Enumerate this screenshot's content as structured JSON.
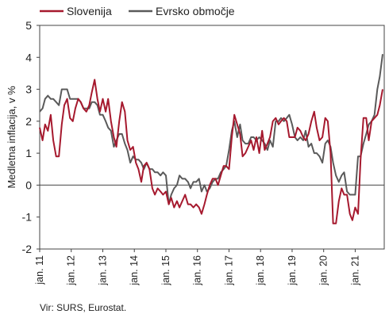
{
  "chart_data": {
    "type": "line",
    "ylabel": "Medletna inflacija, v %",
    "ylim": [
      -2,
      5
    ],
    "yticks": [
      -2,
      -1,
      0,
      1,
      2,
      3,
      4,
      5
    ],
    "xlim": [
      2011.0,
      2021.92
    ],
    "xticks": [
      {
        "x": 2011,
        "label": "jan. 11"
      },
      {
        "x": 2012,
        "label": "jan. 12"
      },
      {
        "x": 2013,
        "label": "jan. 13"
      },
      {
        "x": 2014,
        "label": "jan. 14"
      },
      {
        "x": 2015,
        "label": "jan. 15"
      },
      {
        "x": 2016,
        "label": "jan. 16"
      },
      {
        "x": 2017,
        "label": "jan. 17"
      },
      {
        "x": 2018,
        "label": "jan. 18"
      },
      {
        "x": 2019,
        "label": "jan. 19"
      },
      {
        "x": 2020,
        "label": "jan. 20"
      },
      {
        "x": 2021,
        "label": "jan. 21"
      }
    ],
    "grid": false,
    "legend_position": "top-left",
    "source": "Vir: SURS, Eurostat.",
    "series": [
      {
        "name": "Slovenija",
        "color": "#a6192e",
        "points": [
          [
            2011.0,
            1.8
          ],
          [
            2011.09,
            1.4
          ],
          [
            2011.17,
            1.9
          ],
          [
            2011.26,
            1.7
          ],
          [
            2011.35,
            2.2
          ],
          [
            2011.43,
            1.4
          ],
          [
            2011.52,
            0.9
          ],
          [
            2011.61,
            0.9
          ],
          [
            2011.7,
            1.9
          ],
          [
            2011.78,
            2.5
          ],
          [
            2011.87,
            2.7
          ],
          [
            2011.96,
            2.1
          ],
          [
            2012.05,
            2.0
          ],
          [
            2012.13,
            2.4
          ],
          [
            2012.22,
            2.7
          ],
          [
            2012.3,
            2.6
          ],
          [
            2012.39,
            2.4
          ],
          [
            2012.48,
            2.3
          ],
          [
            2012.57,
            2.5
          ],
          [
            2012.65,
            2.9
          ],
          [
            2012.74,
            3.3
          ],
          [
            2012.83,
            2.7
          ],
          [
            2012.91,
            2.3
          ],
          [
            2013.0,
            2.7
          ],
          [
            2013.09,
            2.3
          ],
          [
            2013.17,
            2.7
          ],
          [
            2013.26,
            2.0
          ],
          [
            2013.35,
            1.5
          ],
          [
            2013.43,
            1.2
          ],
          [
            2013.52,
            2.0
          ],
          [
            2013.61,
            2.6
          ],
          [
            2013.7,
            2.3
          ],
          [
            2013.78,
            1.4
          ],
          [
            2013.87,
            1.1
          ],
          [
            2013.96,
            1.2
          ],
          [
            2014.05,
            0.7
          ],
          [
            2014.13,
            0.5
          ],
          [
            2014.22,
            0.1
          ],
          [
            2014.3,
            0.6
          ],
          [
            2014.39,
            0.7
          ],
          [
            2014.48,
            0.5
          ],
          [
            2014.57,
            -0.1
          ],
          [
            2014.65,
            -0.3
          ],
          [
            2014.74,
            -0.1
          ],
          [
            2014.83,
            -0.2
          ],
          [
            2014.91,
            -0.3
          ],
          [
            2015.0,
            -0.2
          ],
          [
            2015.09,
            -0.6
          ],
          [
            2015.17,
            -0.4
          ],
          [
            2015.26,
            -0.7
          ],
          [
            2015.35,
            -0.5
          ],
          [
            2015.43,
            -0.7
          ],
          [
            2015.52,
            -0.5
          ],
          [
            2015.61,
            -0.3
          ],
          [
            2015.7,
            -0.6
          ],
          [
            2015.78,
            -0.6
          ],
          [
            2015.87,
            -0.7
          ],
          [
            2015.96,
            -0.6
          ],
          [
            2016.05,
            -0.7
          ],
          [
            2016.13,
            -0.9
          ],
          [
            2016.22,
            -0.6
          ],
          [
            2016.3,
            -0.3
          ],
          [
            2016.39,
            0.0
          ],
          [
            2016.48,
            0.2
          ],
          [
            2016.57,
            0.2
          ],
          [
            2016.65,
            0.0
          ],
          [
            2016.74,
            0.3
          ],
          [
            2016.83,
            0.6
          ],
          [
            2016.91,
            0.6
          ],
          [
            2017.0,
            0.5
          ],
          [
            2017.09,
            1.5
          ],
          [
            2017.17,
            2.2
          ],
          [
            2017.26,
            1.9
          ],
          [
            2017.35,
            1.6
          ],
          [
            2017.43,
            0.9
          ],
          [
            2017.52,
            1.0
          ],
          [
            2017.61,
            1.2
          ],
          [
            2017.7,
            1.4
          ],
          [
            2017.78,
            1.1
          ],
          [
            2017.87,
            1.5
          ],
          [
            2017.96,
            1.0
          ],
          [
            2018.05,
            1.7
          ],
          [
            2018.13,
            1.1
          ],
          [
            2018.22,
            1.3
          ],
          [
            2018.3,
            1.5
          ],
          [
            2018.39,
            2.0
          ],
          [
            2018.48,
            2.1
          ],
          [
            2018.57,
            1.9
          ],
          [
            2018.65,
            2.0
          ],
          [
            2018.74,
            2.1
          ],
          [
            2018.83,
            2.0
          ],
          [
            2018.91,
            1.5
          ],
          [
            2019.0,
            1.5
          ],
          [
            2019.09,
            1.5
          ],
          [
            2019.17,
            1.8
          ],
          [
            2019.26,
            1.7
          ],
          [
            2019.35,
            1.5
          ],
          [
            2019.43,
            1.4
          ],
          [
            2019.52,
            1.6
          ],
          [
            2019.61,
            2.0
          ],
          [
            2019.7,
            2.3
          ],
          [
            2019.78,
            1.8
          ],
          [
            2019.87,
            1.4
          ],
          [
            2019.96,
            1.5
          ],
          [
            2020.05,
            2.1
          ],
          [
            2020.13,
            2.0
          ],
          [
            2020.22,
            1.0
          ],
          [
            2020.3,
            -1.2
          ],
          [
            2020.39,
            -1.2
          ],
          [
            2020.48,
            -0.5
          ],
          [
            2020.57,
            -0.1
          ],
          [
            2020.65,
            -0.3
          ],
          [
            2020.74,
            -0.3
          ],
          [
            2020.83,
            -0.9
          ],
          [
            2020.91,
            -1.1
          ],
          [
            2021.0,
            -0.7
          ],
          [
            2021.09,
            -0.9
          ],
          [
            2021.17,
            0.8
          ],
          [
            2021.26,
            2.1
          ],
          [
            2021.35,
            2.1
          ],
          [
            2021.43,
            1.4
          ],
          [
            2021.52,
            2.0
          ],
          [
            2021.61,
            2.1
          ],
          [
            2021.7,
            2.2
          ],
          [
            2021.78,
            2.5
          ],
          [
            2021.87,
            3.0
          ]
        ]
      },
      {
        "name": "Evrsko območje",
        "color": "#5a5a5a",
        "points": [
          [
            2011.0,
            2.3
          ],
          [
            2011.09,
            2.4
          ],
          [
            2011.17,
            2.7
          ],
          [
            2011.26,
            2.8
          ],
          [
            2011.35,
            2.7
          ],
          [
            2011.43,
            2.7
          ],
          [
            2011.52,
            2.6
          ],
          [
            2011.61,
            2.5
          ],
          [
            2011.7,
            3.0
          ],
          [
            2011.78,
            3.0
          ],
          [
            2011.87,
            3.0
          ],
          [
            2011.96,
            2.7
          ],
          [
            2012.05,
            2.7
          ],
          [
            2012.13,
            2.7
          ],
          [
            2012.22,
            2.7
          ],
          [
            2012.3,
            2.6
          ],
          [
            2012.39,
            2.4
          ],
          [
            2012.48,
            2.4
          ],
          [
            2012.57,
            2.4
          ],
          [
            2012.65,
            2.6
          ],
          [
            2012.74,
            2.6
          ],
          [
            2012.83,
            2.5
          ],
          [
            2012.91,
            2.2
          ],
          [
            2013.0,
            2.2
          ],
          [
            2013.09,
            2.0
          ],
          [
            2013.17,
            1.8
          ],
          [
            2013.26,
            1.7
          ],
          [
            2013.35,
            1.2
          ],
          [
            2013.43,
            1.4
          ],
          [
            2013.52,
            1.6
          ],
          [
            2013.61,
            1.6
          ],
          [
            2013.7,
            1.3
          ],
          [
            2013.78,
            1.1
          ],
          [
            2013.87,
            0.7
          ],
          [
            2013.96,
            0.9
          ],
          [
            2014.05,
            0.8
          ],
          [
            2014.13,
            0.8
          ],
          [
            2014.22,
            0.7
          ],
          [
            2014.3,
            0.5
          ],
          [
            2014.39,
            0.7
          ],
          [
            2014.48,
            0.5
          ],
          [
            2014.57,
            0.5
          ],
          [
            2014.65,
            0.4
          ],
          [
            2014.74,
            0.4
          ],
          [
            2014.83,
            0.3
          ],
          [
            2014.91,
            0.4
          ],
          [
            2015.0,
            0.3
          ],
          [
            2015.09,
            -0.6
          ],
          [
            2015.17,
            -0.3
          ],
          [
            2015.26,
            -0.1
          ],
          [
            2015.35,
            0.0
          ],
          [
            2015.43,
            0.3
          ],
          [
            2015.52,
            0.2
          ],
          [
            2015.61,
            0.2
          ],
          [
            2015.7,
            0.1
          ],
          [
            2015.78,
            -0.1
          ],
          [
            2015.87,
            0.1
          ],
          [
            2015.96,
            0.1
          ],
          [
            2016.05,
            0.2
          ],
          [
            2016.13,
            -0.2
          ],
          [
            2016.22,
            0.0
          ],
          [
            2016.3,
            -0.2
          ],
          [
            2016.39,
            -0.1
          ],
          [
            2016.48,
            0.1
          ],
          [
            2016.57,
            0.2
          ],
          [
            2016.65,
            0.2
          ],
          [
            2016.74,
            0.4
          ],
          [
            2016.83,
            0.5
          ],
          [
            2016.91,
            0.6
          ],
          [
            2017.0,
            1.1
          ],
          [
            2017.09,
            1.7
          ],
          [
            2017.17,
            2.0
          ],
          [
            2017.26,
            1.5
          ],
          [
            2017.35,
            1.9
          ],
          [
            2017.43,
            1.4
          ],
          [
            2017.52,
            1.3
          ],
          [
            2017.61,
            1.3
          ],
          [
            2017.7,
            1.5
          ],
          [
            2017.78,
            1.5
          ],
          [
            2017.87,
            1.4
          ],
          [
            2017.96,
            1.5
          ],
          [
            2018.05,
            1.4
          ],
          [
            2018.13,
            1.3
          ],
          [
            2018.22,
            1.1
          ],
          [
            2018.3,
            1.4
          ],
          [
            2018.39,
            1.2
          ],
          [
            2018.48,
            2.0
          ],
          [
            2018.57,
            2.0
          ],
          [
            2018.65,
            2.1
          ],
          [
            2018.74,
            2.0
          ],
          [
            2018.83,
            2.1
          ],
          [
            2018.91,
            2.2
          ],
          [
            2019.0,
            1.9
          ],
          [
            2019.09,
            1.5
          ],
          [
            2019.17,
            1.4
          ],
          [
            2019.26,
            1.5
          ],
          [
            2019.35,
            1.4
          ],
          [
            2019.43,
            1.7
          ],
          [
            2019.52,
            1.2
          ],
          [
            2019.61,
            1.3
          ],
          [
            2019.7,
            1.0
          ],
          [
            2019.78,
            1.0
          ],
          [
            2019.87,
            0.9
          ],
          [
            2019.96,
            0.7
          ],
          [
            2020.05,
            1.3
          ],
          [
            2020.13,
            1.4
          ],
          [
            2020.22,
            1.2
          ],
          [
            2020.3,
            0.7
          ],
          [
            2020.39,
            0.3
          ],
          [
            2020.48,
            0.1
          ],
          [
            2020.57,
            0.3
          ],
          [
            2020.65,
            0.4
          ],
          [
            2020.74,
            -0.2
          ],
          [
            2020.83,
            -0.3
          ],
          [
            2020.91,
            -0.3
          ],
          [
            2021.0,
            -0.3
          ],
          [
            2021.09,
            0.9
          ],
          [
            2021.17,
            0.9
          ],
          [
            2021.26,
            1.3
          ],
          [
            2021.35,
            1.6
          ],
          [
            2021.43,
            1.9
          ],
          [
            2021.52,
            2.0
          ],
          [
            2021.61,
            2.2
          ],
          [
            2021.7,
            3.0
          ],
          [
            2021.78,
            3.4
          ],
          [
            2021.87,
            4.1
          ]
        ]
      }
    ]
  }
}
